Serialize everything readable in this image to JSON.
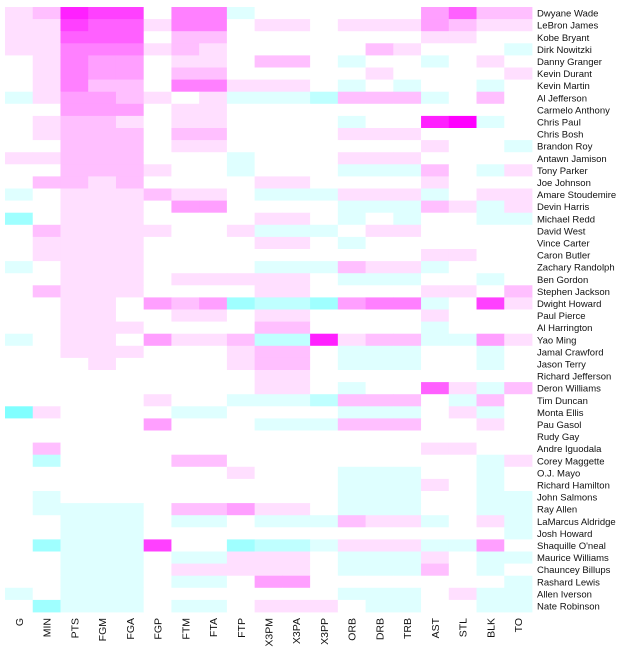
{
  "chart_data": {
    "type": "heatmap",
    "columns": [
      "G",
      "MIN",
      "PTS",
      "FGM",
      "FGA",
      "FGP",
      "FTM",
      "FTA",
      "FTP",
      "X3PM",
      "X3PA",
      "X3PP",
      "ORB",
      "DRB",
      "TRB",
      "AST",
      "STL",
      "BLK",
      "TO"
    ],
    "rows": [
      "Dwyane Wade",
      "LeBron James",
      "Kobe Bryant",
      "Dirk Nowitzki",
      "Danny Granger",
      "Kevin Durant",
      "Kevin Martin",
      "Al Jefferson",
      "Carmelo Anthony",
      "Chris Paul",
      "Chris Bosh",
      "Brandon Roy",
      "Antawn Jamison",
      "Tony Parker",
      "Joe Johnson",
      "Amare Stoudemire",
      "Devin Harris",
      "Michael Redd",
      "David West",
      "Vince Carter",
      "Caron Butler",
      "Zachary Randolph",
      "Ben Gordon",
      "Stephen Jackson",
      "Dwight Howard",
      "Paul Pierce",
      "Al Harrington",
      "Yao Ming",
      "Jamal Crawford",
      "Jason Terry",
      "Richard Jefferson",
      "Deron Williams",
      "Tim Duncan",
      "Monta Ellis",
      "Pau Gasol",
      "Rudy Gay",
      "Andre Iguodala",
      "Corey Maggette",
      "O.J. Mayo",
      "Richard Hamilton",
      "John Salmons",
      "Ray Allen",
      "LaMarcus Aldridge",
      "Josh Howard",
      "Shaquille O'neal",
      "Maurice Williams",
      "Chauncey Billups",
      "Rashard Lewis",
      "Allen Iverson",
      "Nate Robinson"
    ],
    "values": [
      [
        0.1,
        0.2,
        0.7,
        0.6,
        0.6,
        0.0,
        0.4,
        0.4,
        -0.1,
        0.0,
        0.0,
        0.0,
        0.0,
        0.0,
        0.0,
        0.3,
        0.5,
        0.2,
        0.2
      ],
      [
        0.1,
        0.1,
        0.6,
        0.5,
        0.5,
        0.1,
        0.4,
        0.4,
        0.0,
        0.1,
        0.1,
        0.0,
        0.1,
        0.1,
        0.1,
        0.3,
        0.2,
        0.1,
        0.1
      ],
      [
        0.1,
        0.1,
        0.5,
        0.5,
        0.5,
        0.0,
        0.2,
        0.2,
        0.0,
        0.0,
        0.0,
        0.0,
        0.0,
        0.0,
        0.0,
        0.1,
        0.1,
        0.0,
        0.0
      ],
      [
        0.1,
        0.1,
        0.4,
        0.4,
        0.4,
        0.1,
        0.2,
        0.1,
        0.0,
        0.0,
        0.0,
        0.0,
        0.0,
        0.2,
        0.1,
        0.0,
        0.0,
        0.0,
        -0.1
      ],
      [
        0.0,
        0.1,
        0.4,
        0.3,
        0.3,
        0.0,
        0.1,
        0.1,
        0.0,
        0.2,
        0.2,
        0.0,
        -0.1,
        0.0,
        0.0,
        -0.1,
        0.0,
        0.1,
        0.0
      ],
      [
        0.0,
        0.1,
        0.4,
        0.3,
        0.3,
        0.0,
        0.2,
        0.2,
        0.0,
        0.0,
        0.0,
        0.0,
        0.0,
        0.1,
        0.0,
        0.0,
        0.0,
        0.0,
        0.1
      ],
      [
        0.0,
        0.1,
        0.4,
        0.2,
        0.2,
        0.0,
        0.4,
        0.4,
        0.1,
        0.1,
        0.1,
        0.0,
        -0.1,
        0.0,
        -0.1,
        0.0,
        0.0,
        -0.1,
        0.0
      ],
      [
        -0.1,
        0.1,
        0.3,
        0.3,
        0.2,
        0.1,
        0.0,
        0.1,
        -0.1,
        -0.1,
        -0.1,
        -0.2,
        0.2,
        0.2,
        0.2,
        -0.1,
        0.0,
        0.2,
        0.0
      ],
      [
        0.0,
        0.0,
        0.3,
        0.3,
        0.3,
        0.0,
        0.1,
        0.1,
        0.0,
        0.0,
        0.0,
        0.0,
        0.0,
        0.0,
        0.0,
        0.0,
        0.0,
        0.0,
        0.0
      ],
      [
        0.0,
        0.1,
        0.2,
        0.2,
        0.1,
        0.0,
        0.1,
        0.1,
        0.0,
        0.0,
        0.0,
        0.0,
        -0.1,
        0.0,
        0.0,
        0.7,
        0.8,
        -0.1,
        0.0
      ],
      [
        0.0,
        0.1,
        0.2,
        0.2,
        0.2,
        0.0,
        0.2,
        0.2,
        0.0,
        0.0,
        0.0,
        0.0,
        0.1,
        0.1,
        0.1,
        0.0,
        0.0,
        0.0,
        0.0
      ],
      [
        0.0,
        0.0,
        0.2,
        0.2,
        0.2,
        0.0,
        0.1,
        0.1,
        0.0,
        0.0,
        0.0,
        0.0,
        0.0,
        0.0,
        0.0,
        0.1,
        0.0,
        0.0,
        -0.1
      ],
      [
        0.1,
        0.1,
        0.2,
        0.2,
        0.2,
        0.0,
        0.0,
        0.0,
        -0.1,
        0.0,
        0.0,
        0.0,
        0.1,
        0.1,
        0.1,
        0.0,
        0.0,
        0.0,
        0.0
      ],
      [
        0.0,
        0.0,
        0.2,
        0.2,
        0.2,
        0.1,
        0.0,
        0.0,
        -0.1,
        0.0,
        0.0,
        0.0,
        -0.1,
        -0.1,
        -0.1,
        0.2,
        0.0,
        -0.1,
        0.1
      ],
      [
        0.0,
        0.2,
        0.2,
        0.1,
        0.2,
        0.0,
        0.0,
        0.0,
        0.0,
        0.1,
        0.1,
        0.0,
        0.0,
        0.0,
        0.0,
        0.1,
        0.0,
        0.0,
        0.0
      ],
      [
        -0.1,
        0.0,
        0.1,
        0.1,
        0.1,
        0.2,
        0.1,
        0.1,
        0.0,
        -0.1,
        -0.1,
        -0.1,
        0.1,
        0.1,
        0.1,
        -0.1,
        0.0,
        0.1,
        0.1
      ],
      [
        0.0,
        0.0,
        0.1,
        0.1,
        0.1,
        0.0,
        0.3,
        0.3,
        0.0,
        0.0,
        0.0,
        0.0,
        -0.1,
        -0.1,
        -0.1,
        0.2,
        0.1,
        -0.1,
        0.1
      ],
      [
        -0.3,
        0.0,
        0.1,
        0.1,
        0.1,
        0.0,
        0.0,
        0.0,
        0.0,
        0.1,
        0.1,
        0.0,
        -0.1,
        0.0,
        -0.1,
        0.0,
        0.0,
        -0.1,
        -0.1
      ],
      [
        0.0,
        0.2,
        0.1,
        0.1,
        0.1,
        0.1,
        0.0,
        0.0,
        0.1,
        -0.1,
        -0.1,
        -0.1,
        0.0,
        0.1,
        0.1,
        0.0,
        0.0,
        0.0,
        0.0
      ],
      [
        0.0,
        0.1,
        0.1,
        0.1,
        0.1,
        0.0,
        0.0,
        0.0,
        0.0,
        0.1,
        0.1,
        0.0,
        -0.1,
        0.0,
        0.0,
        0.0,
        0.0,
        0.0,
        0.0
      ],
      [
        0.0,
        0.1,
        0.1,
        0.1,
        0.1,
        0.0,
        0.0,
        0.0,
        0.0,
        0.0,
        0.0,
        0.0,
        0.0,
        0.0,
        0.0,
        0.1,
        0.1,
        0.0,
        0.0
      ],
      [
        -0.1,
        0.0,
        0.1,
        0.1,
        0.1,
        0.0,
        0.0,
        0.0,
        0.0,
        -0.1,
        -0.1,
        -0.1,
        0.2,
        0.1,
        0.1,
        -0.1,
        0.0,
        0.0,
        0.0
      ],
      [
        0.0,
        0.0,
        0.1,
        0.1,
        0.1,
        0.0,
        0.1,
        0.1,
        0.1,
        0.1,
        0.1,
        0.0,
        -0.1,
        -0.1,
        -0.1,
        0.0,
        0.0,
        -0.1,
        0.0
      ],
      [
        0.0,
        0.2,
        0.1,
        0.1,
        0.1,
        0.0,
        0.0,
        0.0,
        0.0,
        0.1,
        0.1,
        0.0,
        0.0,
        0.0,
        0.0,
        0.1,
        0.1,
        0.0,
        0.2
      ],
      [
        0.0,
        0.0,
        0.1,
        0.1,
        0.0,
        0.3,
        0.2,
        0.3,
        -0.3,
        -0.2,
        -0.2,
        -0.3,
        0.3,
        0.4,
        0.4,
        -0.1,
        0.0,
        0.6,
        0.1
      ],
      [
        0.0,
        0.0,
        0.1,
        0.1,
        0.0,
        0.0,
        0.1,
        0.1,
        0.0,
        0.1,
        0.1,
        0.0,
        0.0,
        0.0,
        0.0,
        0.1,
        0.0,
        0.0,
        0.0
      ],
      [
        0.0,
        0.0,
        0.1,
        0.1,
        0.1,
        0.0,
        0.0,
        0.0,
        0.0,
        0.2,
        0.2,
        0.0,
        0.0,
        0.0,
        0.0,
        -0.1,
        0.0,
        0.0,
        0.0
      ],
      [
        -0.1,
        0.0,
        0.1,
        0.1,
        0.0,
        0.3,
        0.1,
        0.1,
        0.2,
        -0.2,
        -0.2,
        0.7,
        0.1,
        0.2,
        0.2,
        -0.1,
        -0.1,
        0.3,
        0.1
      ],
      [
        0.0,
        0.0,
        0.1,
        0.1,
        0.1,
        0.0,
        0.0,
        0.0,
        0.1,
        0.2,
        0.2,
        0.0,
        -0.1,
        -0.1,
        -0.1,
        0.0,
        0.0,
        -0.1,
        0.0
      ],
      [
        0.0,
        0.0,
        0.0,
        0.1,
        0.0,
        0.0,
        0.0,
        0.0,
        0.1,
        0.2,
        0.2,
        0.0,
        -0.1,
        -0.1,
        -0.1,
        0.0,
        0.0,
        -0.1,
        0.0
      ],
      [
        0.0,
        0.0,
        0.0,
        0.0,
        0.0,
        0.0,
        0.0,
        0.0,
        0.0,
        0.1,
        0.1,
        0.0,
        0.0,
        0.0,
        0.0,
        0.0,
        0.0,
        0.0,
        0.0
      ],
      [
        0.0,
        0.0,
        0.0,
        0.0,
        0.0,
        0.0,
        0.0,
        0.0,
        0.0,
        0.1,
        0.1,
        0.0,
        -0.1,
        0.0,
        0.0,
        0.5,
        0.1,
        -0.1,
        0.2
      ],
      [
        0.0,
        0.0,
        0.0,
        0.0,
        0.0,
        0.1,
        0.0,
        0.0,
        -0.1,
        -0.1,
        -0.1,
        -0.2,
        0.2,
        0.2,
        0.2,
        0.0,
        -0.1,
        0.2,
        0.0
      ],
      [
        -0.4,
        0.1,
        0.0,
        0.0,
        0.0,
        0.0,
        -0.1,
        -0.1,
        0.0,
        0.0,
        0.0,
        0.0,
        -0.1,
        -0.1,
        -0.1,
        0.0,
        0.1,
        -0.1,
        0.0
      ],
      [
        0.0,
        0.0,
        0.0,
        0.0,
        0.0,
        0.3,
        0.0,
        0.0,
        0.0,
        -0.1,
        -0.1,
        -0.1,
        0.2,
        0.2,
        0.2,
        0.0,
        0.0,
        0.1,
        0.0
      ],
      [
        0.0,
        0.0,
        0.0,
        0.0,
        0.0,
        0.0,
        0.0,
        0.0,
        0.0,
        0.0,
        0.0,
        0.0,
        0.0,
        0.0,
        0.0,
        0.0,
        0.0,
        0.0,
        0.0
      ],
      [
        0.0,
        0.2,
        0.0,
        0.0,
        0.0,
        0.0,
        0.0,
        0.0,
        0.0,
        0.0,
        0.0,
        0.0,
        0.0,
        0.0,
        0.0,
        0.1,
        0.1,
        0.0,
        0.0
      ],
      [
        0.0,
        -0.2,
        0.0,
        0.0,
        0.0,
        0.0,
        0.2,
        0.2,
        0.0,
        0.0,
        0.0,
        0.0,
        0.0,
        0.0,
        0.0,
        0.0,
        0.0,
        -0.1,
        0.1
      ],
      [
        0.0,
        0.0,
        0.0,
        0.0,
        0.0,
        0.0,
        0.0,
        0.0,
        0.1,
        0.0,
        0.0,
        0.0,
        -0.1,
        -0.1,
        -0.1,
        0.0,
        0.0,
        -0.1,
        0.0
      ],
      [
        0.0,
        0.0,
        0.0,
        0.0,
        0.0,
        0.0,
        0.0,
        0.0,
        0.0,
        0.0,
        0.0,
        0.0,
        -0.1,
        -0.1,
        -0.1,
        0.1,
        0.0,
        -0.1,
        0.0
      ],
      [
        0.0,
        -0.1,
        0.0,
        0.0,
        0.0,
        0.0,
        0.0,
        0.0,
        0.0,
        0.0,
        0.0,
        0.0,
        -0.1,
        -0.1,
        -0.1,
        0.0,
        0.0,
        -0.1,
        -0.1
      ],
      [
        0.0,
        -0.1,
        -0.1,
        -0.1,
        -0.1,
        0.0,
        0.2,
        0.2,
        0.3,
        0.1,
        0.1,
        0.0,
        -0.1,
        -0.1,
        -0.1,
        0.0,
        0.0,
        -0.1,
        -0.1
      ],
      [
        0.0,
        0.0,
        -0.1,
        -0.1,
        -0.1,
        0.0,
        -0.1,
        -0.1,
        0.0,
        -0.1,
        -0.1,
        -0.1,
        0.2,
        0.1,
        0.1,
        -0.1,
        0.0,
        0.1,
        -0.1
      ],
      [
        0.0,
        0.0,
        -0.1,
        -0.1,
        -0.1,
        0.0,
        0.0,
        0.0,
        0.0,
        0.0,
        0.0,
        0.0,
        0.0,
        0.0,
        0.0,
        0.0,
        0.0,
        0.0,
        -0.1
      ],
      [
        0.0,
        -0.3,
        -0.1,
        -0.1,
        -0.1,
        0.6,
        0.0,
        0.0,
        -0.3,
        -0.2,
        -0.2,
        -0.1,
        0.1,
        0.1,
        0.1,
        -0.1,
        -0.1,
        0.3,
        0.0
      ],
      [
        0.0,
        0.0,
        -0.1,
        -0.1,
        -0.1,
        0.0,
        -0.1,
        -0.1,
        0.1,
        0.1,
        0.1,
        0.0,
        -0.1,
        -0.1,
        -0.1,
        0.1,
        0.0,
        -0.1,
        -0.1
      ],
      [
        0.0,
        0.0,
        -0.1,
        -0.1,
        -0.1,
        0.0,
        0.1,
        0.1,
        0.1,
        0.1,
        0.1,
        0.0,
        -0.1,
        -0.1,
        -0.1,
        0.2,
        0.0,
        -0.1,
        0.0
      ],
      [
        0.0,
        0.0,
        -0.1,
        -0.1,
        -0.1,
        0.0,
        -0.1,
        -0.1,
        0.0,
        0.3,
        0.3,
        0.0,
        0.0,
        0.0,
        0.0,
        0.0,
        0.0,
        0.0,
        -0.1
      ],
      [
        -0.1,
        0.0,
        -0.1,
        -0.1,
        -0.1,
        0.0,
        0.0,
        0.0,
        0.0,
        0.0,
        0.0,
        0.0,
        -0.1,
        -0.1,
        -0.1,
        0.0,
        0.1,
        -0.1,
        -0.1
      ],
      [
        0.0,
        -0.3,
        -0.1,
        -0.1,
        -0.1,
        0.0,
        -0.1,
        -0.1,
        0.0,
        0.1,
        0.1,
        0.1,
        0.0,
        -0.1,
        -0.1,
        0.0,
        0.0,
        -0.1,
        -0.1
      ]
    ],
    "color_scale": {
      "negative": "#00ffff",
      "zero": "#ffffff",
      "positive": "#ff00ff",
      "range": [
        -0.8,
        0.8
      ]
    },
    "legend": "none",
    "grid": false
  }
}
